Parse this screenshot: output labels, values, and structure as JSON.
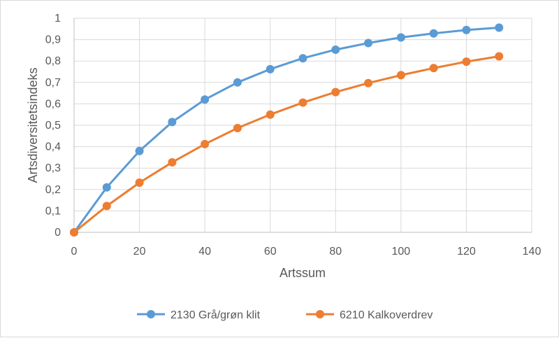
{
  "chart_data": {
    "type": "line",
    "title": "",
    "xlabel": "Artssum",
    "ylabel": "Artsdiversitetsindeks",
    "xlim": [
      0,
      140
    ],
    "ylim": [
      0,
      1
    ],
    "x_ticks": [
      "0",
      "20",
      "40",
      "60",
      "80",
      "100",
      "120",
      "140"
    ],
    "y_ticks": [
      "0",
      "0,1",
      "0,2",
      "0,3",
      "0,4",
      "0,5",
      "0,6",
      "0,7",
      "0,8",
      "0,9",
      "1"
    ],
    "x_tick_values": [
      0,
      20,
      40,
      60,
      80,
      100,
      120,
      140
    ],
    "y_tick_values": [
      0,
      0.1,
      0.2,
      0.3,
      0.4,
      0.5,
      0.6,
      0.7,
      0.8,
      0.9,
      1
    ],
    "grid": true,
    "legend_position": "bottom",
    "x": [
      0,
      10,
      20,
      30,
      40,
      50,
      60,
      70,
      80,
      90,
      100,
      110,
      120,
      130
    ],
    "series": [
      {
        "name": "2130 Grå/grøn klit",
        "color": "#5b9bd5",
        "values": [
          0,
          0.21,
          0.38,
          0.515,
          0.62,
          0.7,
          0.762,
          0.813,
          0.853,
          0.884,
          0.91,
          0.929,
          0.945,
          0.956
        ]
      },
      {
        "name": "6210 Kalkoverdrev",
        "color": "#ed7d31",
        "values": [
          0,
          0.123,
          0.232,
          0.327,
          0.412,
          0.487,
          0.55,
          0.606,
          0.655,
          0.697,
          0.734,
          0.767,
          0.797,
          0.822
        ]
      }
    ]
  }
}
